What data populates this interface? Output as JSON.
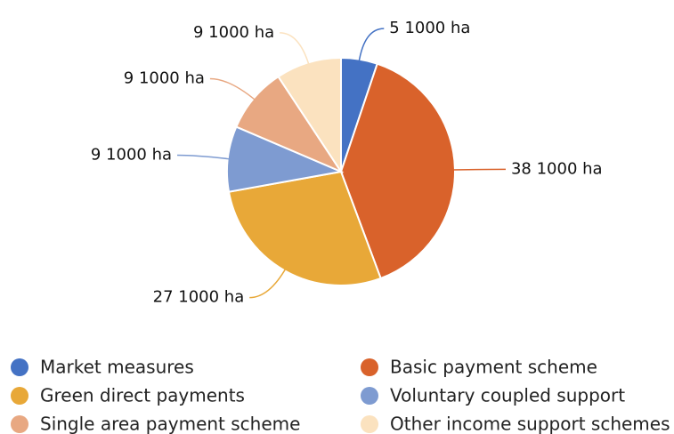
{
  "chart_data": {
    "type": "pie",
    "categories": [
      "Market measures",
      "Basic payment scheme",
      "Green direct payments",
      "Voluntary coupled support",
      "Single area payment scheme",
      "Other income support schemes"
    ],
    "values": [
      5,
      38,
      27,
      9,
      9,
      9
    ],
    "value_labels": [
      "5 1000 ha",
      "38 1000 ha",
      "27 1000 ha",
      "9 1000 ha",
      "9 1000 ha",
      "9 1000 ha"
    ],
    "colors": [
      "#4472c4",
      "#d9622b",
      "#e8a838",
      "#7e9bd1",
      "#e8a882",
      "#fbe2bf"
    ],
    "legend": "bottom"
  }
}
